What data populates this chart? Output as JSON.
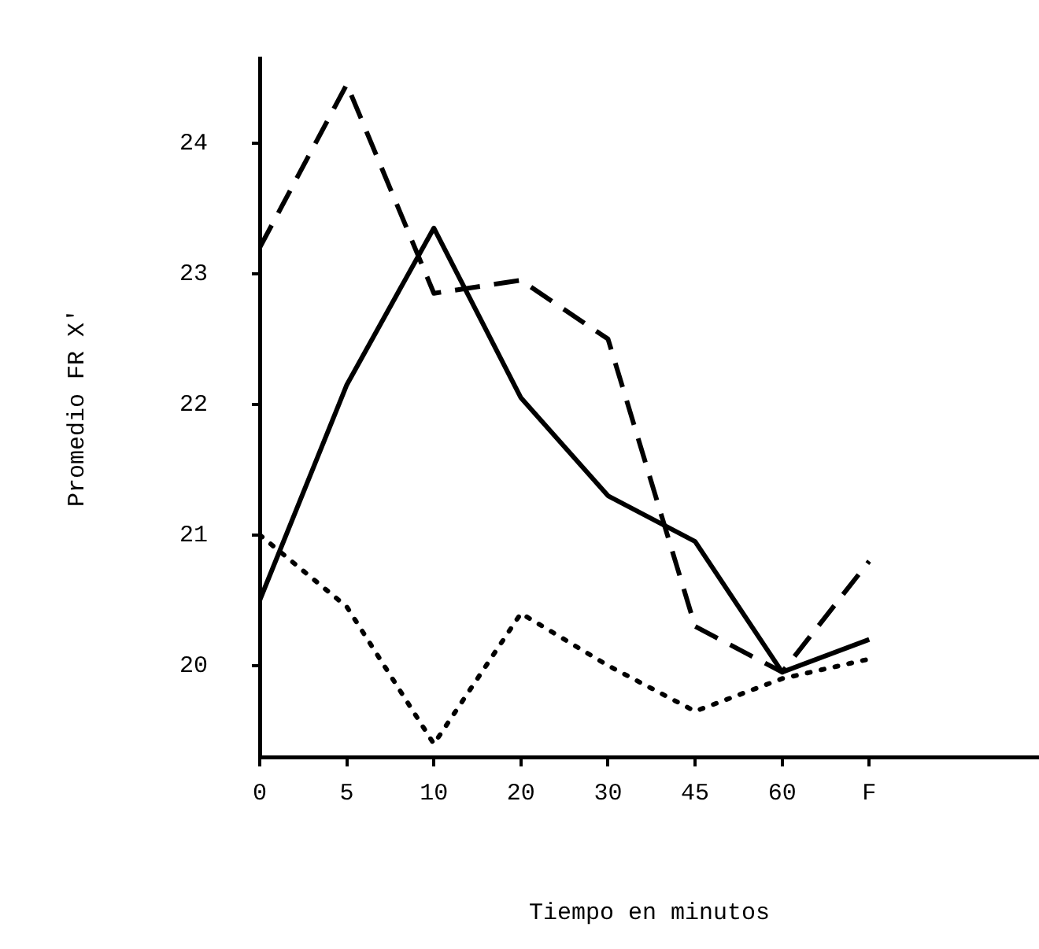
{
  "chart_data": {
    "type": "line",
    "xlabel": "Tiempo en minutos",
    "ylabel": "Promedio FR X'",
    "categories": [
      "0",
      "5",
      "10",
      "20",
      "30",
      "45",
      "60",
      "F"
    ],
    "ylim": [
      19.3,
      24.65
    ],
    "yticks": [
      20,
      21,
      22,
      23,
      24
    ],
    "grid": false,
    "legend": false,
    "marker": "none",
    "series": [
      {
        "color": "#000000",
        "line_style": "solid",
        "values": [
          20.5,
          22.15,
          23.35,
          22.05,
          21.3,
          20.95,
          19.95,
          20.2
        ]
      },
      {
        "color": "#000000",
        "line_style": "dashed",
        "values": [
          23.2,
          24.45,
          22.85,
          22.95,
          22.5,
          20.3,
          19.95,
          20.8
        ]
      },
      {
        "color": "#000000",
        "line_style": "dotted",
        "values": [
          21.0,
          20.45,
          19.4,
          20.4,
          20.0,
          19.65,
          19.9,
          20.05
        ]
      }
    ]
  }
}
